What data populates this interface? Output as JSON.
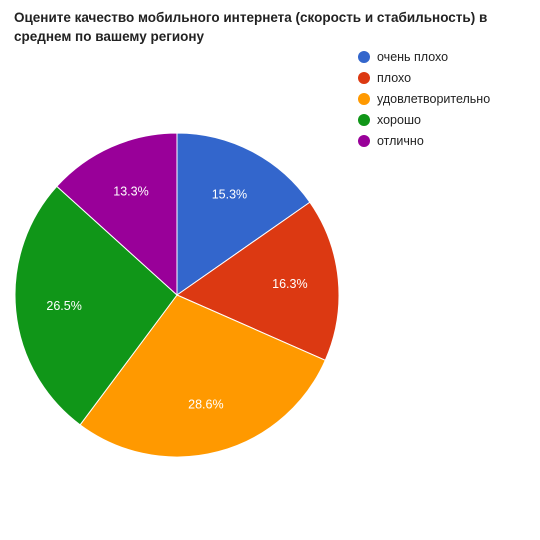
{
  "chart_data": {
    "type": "pie",
    "title": "Оцените качество мобильного интернета (скорость и стабильность) в среднем по вашему региону",
    "legend_position": "right",
    "slices": [
      {
        "label": "очень плохо",
        "value": 15.3,
        "value_label": "15.3%",
        "color": "#3366cc"
      },
      {
        "label": "плохо",
        "value": 16.3,
        "value_label": "16.3%",
        "color": "#dc3912"
      },
      {
        "label": "удовлетворительно",
        "value": 28.6,
        "value_label": "28.6%",
        "color": "#ff9900"
      },
      {
        "label": "хорошо",
        "value": 26.5,
        "value_label": "26.5%",
        "color": "#109618"
      },
      {
        "label": "отлично",
        "value": 13.3,
        "value_label": "13.3%",
        "color": "#990099"
      }
    ]
  }
}
